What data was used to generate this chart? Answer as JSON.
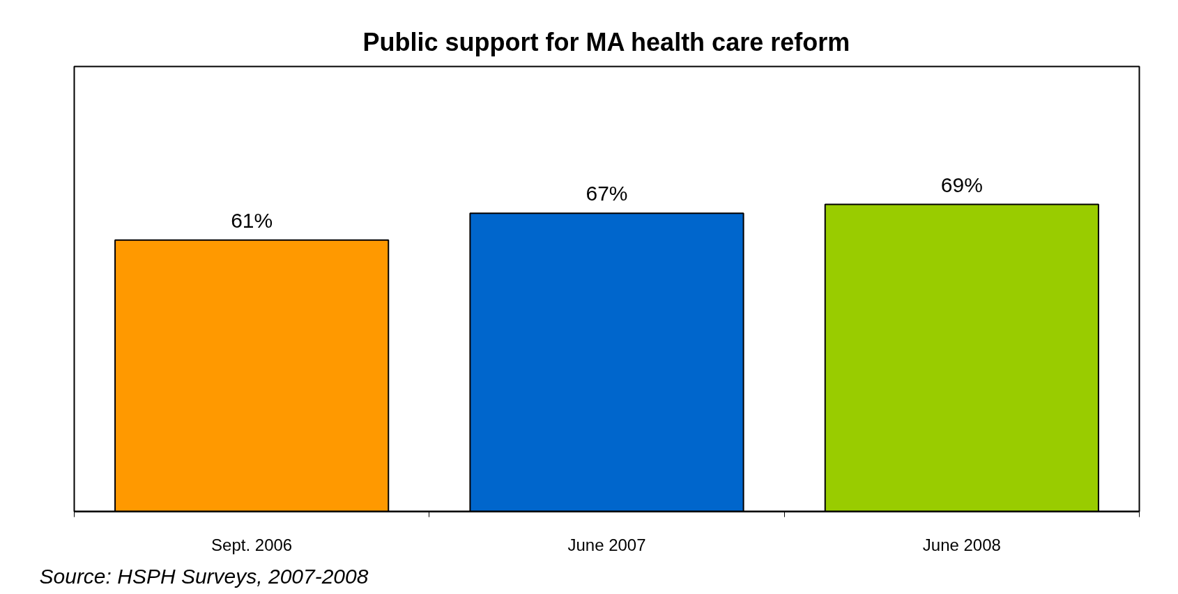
{
  "chart_data": {
    "type": "bar",
    "title": "Public support for MA health care reform",
    "categories": [
      "Sept. 2006",
      "June 2007",
      "June 2008"
    ],
    "values": [
      61,
      67,
      69
    ],
    "colors": [
      "#ff9900",
      "#0066cc",
      "#99cc00"
    ],
    "ylim": [
      0,
      100
    ],
    "data_labels": true,
    "value_labels": [
      "61%",
      "67%",
      "69%"
    ],
    "tick_labels": "x",
    "annotations": [
      "Source: HSPH Surveys, 2007-2008"
    ]
  }
}
